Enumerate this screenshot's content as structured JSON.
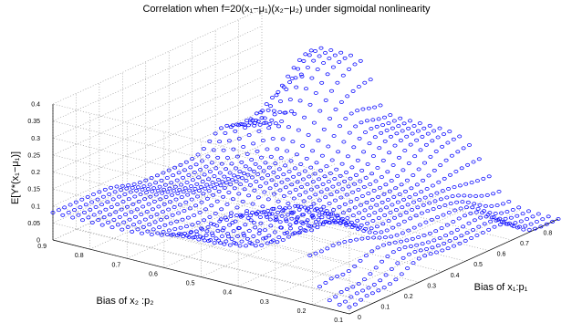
{
  "chart_data": {
    "type": "scatter",
    "subtype": "3d-surface-scatter",
    "title": "Correlation when f=20(x₁−μ₁)(x₂−μ₂) under sigmoidal nonlinearity",
    "xlabel": "Bias of x₁:p₁",
    "ylabel": "Bias of x₂ :p₂",
    "zlabel": "E[Y*(x₁−μ₁)]",
    "x_ticks": [
      "0",
      "0.1",
      "0.2",
      "0.3",
      "0.4",
      "0.5",
      "0.6",
      "0.7",
      "0.8"
    ],
    "y_ticks": [
      "0.1",
      "0.2",
      "0.3",
      "0.4",
      "0.5",
      "0.6",
      "0.7",
      "0.8",
      "0.9"
    ],
    "z_ticks": [
      "0",
      "0.05",
      "0.1",
      "0.15",
      "0.2",
      "0.25",
      "0.3",
      "0.35",
      "0.4"
    ],
    "xlim": [
      0,
      0.9
    ],
    "ylim": [
      0.1,
      0.9
    ],
    "zlim": [
      0,
      0.4
    ],
    "grid": true,
    "marker": "circle",
    "marker_color": "#0000ff",
    "sampled_points": [
      {
        "p1": 0.9,
        "p2": 0.9,
        "z": 0.08
      },
      {
        "p1": 0.9,
        "p2": 0.7,
        "z": 0.33
      },
      {
        "p1": 0.9,
        "p2": 0.5,
        "z": 0.18
      },
      {
        "p1": 0.9,
        "p2": 0.1,
        "z": 0.0
      },
      {
        "p1": 0.5,
        "p2": 0.9,
        "z": 0.05
      },
      {
        "p1": 0.5,
        "p2": 0.5,
        "z": 0.11
      },
      {
        "p1": 0.5,
        "p2": 0.3,
        "z": 0.1
      },
      {
        "p1": 0.5,
        "p2": 0.1,
        "z": 0.06
      },
      {
        "p1": 0.2,
        "p2": 0.5,
        "z": 0.05
      },
      {
        "p1": 0.1,
        "p2": 0.8,
        "z": 0.08
      },
      {
        "p1": 0.1,
        "p2": 0.3,
        "z": 0.21
      },
      {
        "p1": 0.1,
        "p2": 0.1,
        "z": 0.03
      },
      {
        "p1": 0.0,
        "p2": 0.3,
        "z": 0.22
      },
      {
        "p1": 0.0,
        "p2": 0.1,
        "z": 0.02
      }
    ]
  }
}
